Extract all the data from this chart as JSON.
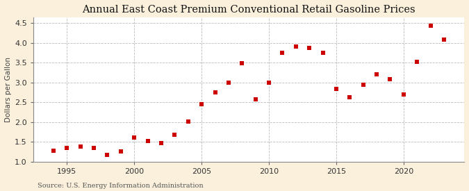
{
  "title": "Annual East Coast Premium Conventional Retail Gasoline Prices",
  "ylabel": "Dollars per Gallon",
  "source": "Source: U.S. Energy Information Administration",
  "years": [
    1994,
    1995,
    1996,
    1997,
    1998,
    1999,
    2000,
    2001,
    2002,
    2003,
    2004,
    2005,
    2006,
    2007,
    2008,
    2009,
    2010,
    2011,
    2012,
    2013,
    2014,
    2015,
    2016,
    2017,
    2018,
    2019,
    2020,
    2021,
    2022,
    2023
  ],
  "values": [
    1.27,
    1.35,
    1.38,
    1.35,
    1.16,
    1.25,
    1.6,
    1.52,
    1.47,
    1.67,
    2.02,
    2.45,
    2.75,
    3.0,
    3.49,
    2.58,
    3.0,
    3.76,
    3.91,
    3.87,
    3.76,
    2.83,
    2.62,
    2.95,
    3.2,
    3.08,
    2.7,
    3.52,
    4.44,
    4.09
  ],
  "marker_color": "#cc0000",
  "marker": "s",
  "marker_size": 16,
  "ylim": [
    1.0,
    4.65
  ],
  "yticks": [
    1.0,
    1.5,
    2.0,
    2.5,
    3.0,
    3.5,
    4.0,
    4.5
  ],
  "xlim": [
    1992.5,
    2024.5
  ],
  "xticks": [
    1995,
    2000,
    2005,
    2010,
    2015,
    2020
  ],
  "outer_bg_color": "#faf0dc",
  "plot_bg_color": "#ffffff",
  "grid_color": "#bbbbbb",
  "title_fontsize": 10.5,
  "label_fontsize": 7.5,
  "tick_fontsize": 8,
  "source_fontsize": 7
}
